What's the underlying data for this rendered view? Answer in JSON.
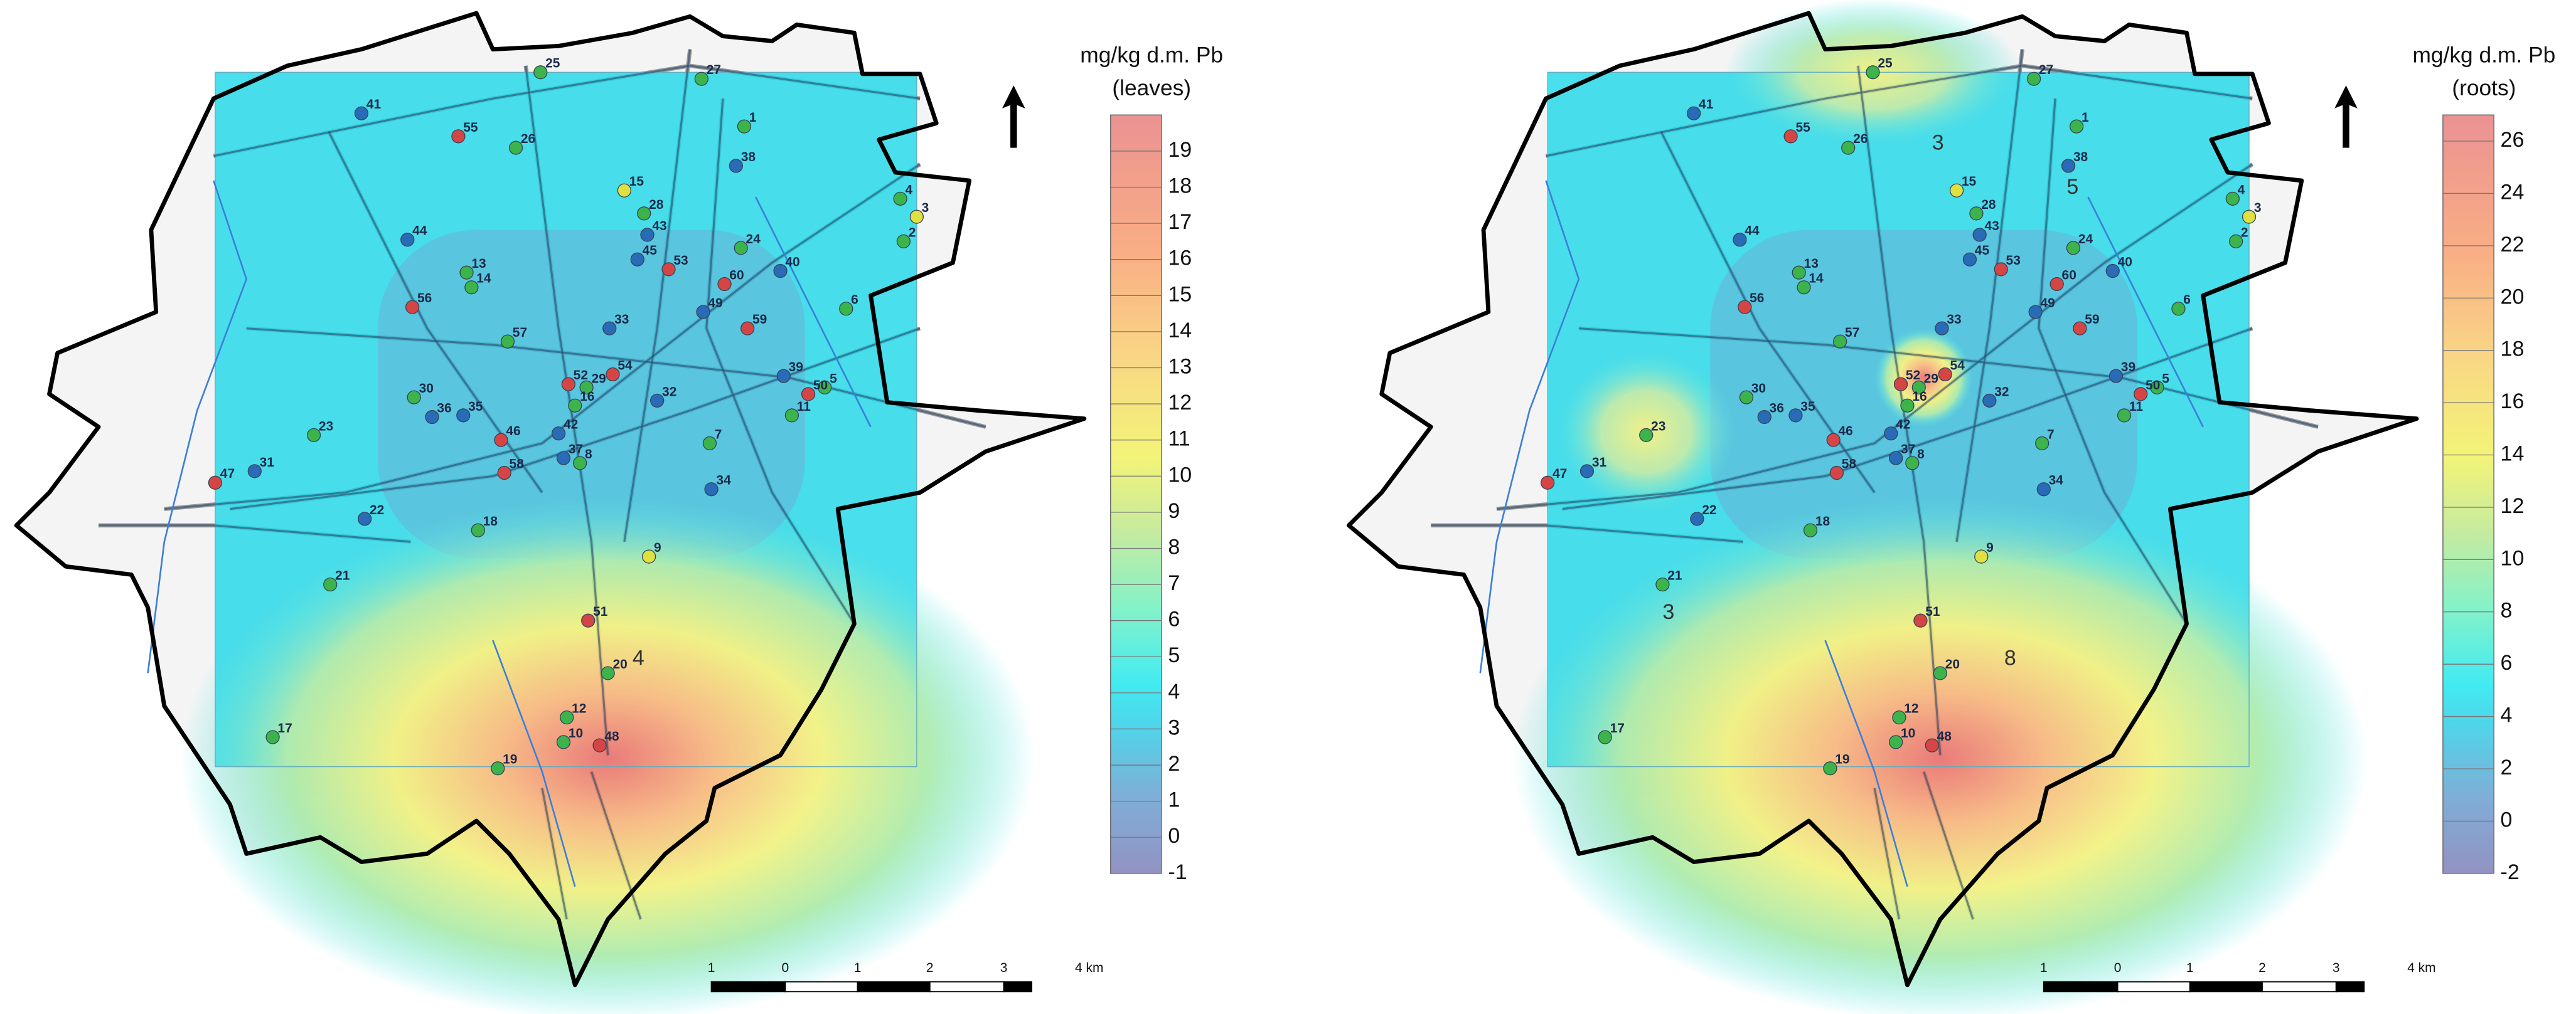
{
  "panels": [
    {
      "legend_title": "mg/kg d.m. Pb",
      "legend_subtitle": "(leaves)",
      "clim": [
        -1,
        20
      ],
      "ticks": [
        19,
        18,
        17,
        16,
        15,
        14,
        13,
        12,
        11,
        10,
        9,
        8,
        7,
        6,
        5,
        4,
        3,
        2,
        1,
        0,
        -1
      ],
      "contour_labels": [
        4
      ]
    },
    {
      "legend_title": "mg/kg d.m. Pb",
      "legend_subtitle": "(roots)",
      "clim": [
        -2,
        27
      ],
      "ticks": [
        26,
        24,
        22,
        20,
        18,
        16,
        14,
        12,
        10,
        8,
        6,
        4,
        2,
        0,
        -2
      ],
      "contour_labels": [
        3,
        5,
        8,
        3
      ]
    }
  ],
  "sites": [
    "25",
    "27",
    "41",
    "55",
    "26",
    "1",
    "38",
    "15",
    "28",
    "43",
    "4",
    "3",
    "2",
    "24",
    "40",
    "44",
    "13",
    "14",
    "45",
    "53",
    "60",
    "56",
    "6",
    "49",
    "59",
    "33",
    "57",
    "54",
    "52",
    "29",
    "39",
    "5",
    "50",
    "30",
    "36",
    "35",
    "16",
    "32",
    "11",
    "23",
    "42",
    "46",
    "7",
    "37",
    "8",
    "31",
    "47",
    "58",
    "34",
    "22",
    "18",
    "9",
    "21",
    "51",
    "20",
    "12",
    "10",
    "48",
    "17",
    "19"
  ],
  "scale_bar": {
    "labels": [
      "1",
      "0",
      "1",
      "2",
      "3",
      "4 km"
    ]
  }
}
